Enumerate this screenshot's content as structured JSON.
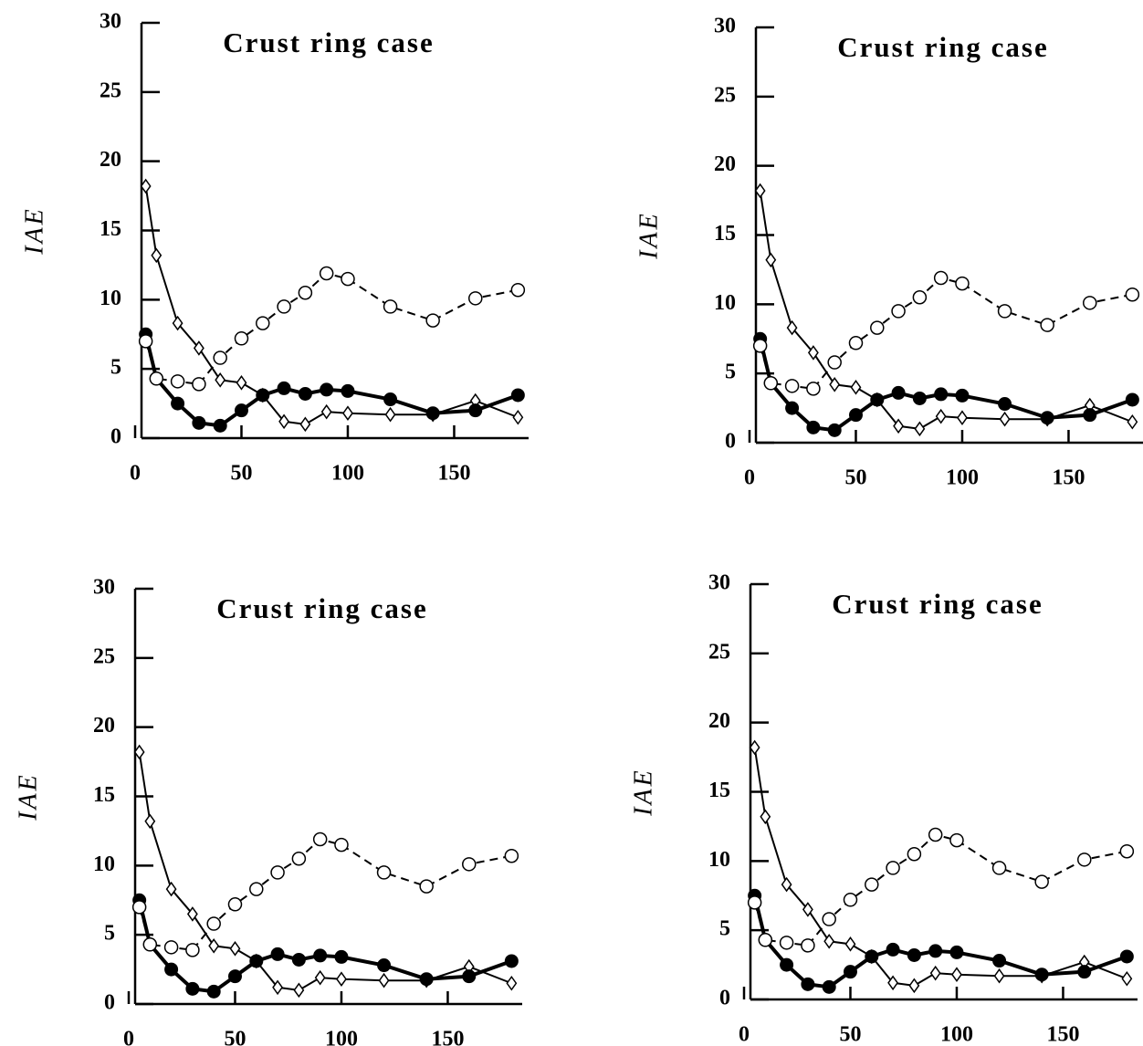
{
  "chart_data": [
    {
      "type": "line",
      "title": "Crust ring case",
      "ylabel": "IAE",
      "x": [
        5,
        10,
        20,
        30,
        40,
        50,
        60,
        70,
        80,
        90,
        100,
        120,
        140,
        160,
        180
      ],
      "xlim": [
        0,
        185
      ],
      "ylim": [
        0,
        30
      ],
      "xticks": [
        0,
        50,
        100,
        150
      ],
      "yticks": [
        0,
        5,
        10,
        15,
        20,
        25,
        30
      ],
      "series": [
        {
          "color": "#000000",
          "marker": "diamond",
          "line_style": "solid",
          "line_width": 2,
          "values": [
            18.2,
            13.2,
            8.3,
            6.5,
            4.2,
            4.0,
            3.1,
            1.2,
            1.0,
            1.9,
            1.8,
            1.7,
            1.7,
            2.7,
            1.5
          ]
        },
        {
          "color": "#000000",
          "marker": "filled-circle",
          "line_style": "solid",
          "line_width": 4,
          "values": [
            7.5,
            4.3,
            2.5,
            1.1,
            0.9,
            2.0,
            3.1,
            3.6,
            3.2,
            3.5,
            3.4,
            2.8,
            1.8,
            2.0,
            3.1
          ]
        },
        {
          "color": "#000000",
          "marker": "open-circle",
          "line_style": "dashed",
          "line_width": 2,
          "values": [
            7.0,
            4.3,
            4.1,
            3.9,
            5.8,
            7.2,
            8.3,
            9.5,
            10.5,
            11.9,
            11.5,
            9.5,
            8.5,
            10.1,
            10.7
          ]
        }
      ]
    },
    {
      "type": "line",
      "title": "Crust ring case",
      "ylabel": "IAE",
      "x": [
        5,
        10,
        20,
        30,
        40,
        50,
        60,
        70,
        80,
        90,
        100,
        120,
        140,
        160,
        180
      ],
      "xlim": [
        0,
        185
      ],
      "ylim": [
        0,
        30
      ],
      "xticks": [
        0,
        50,
        100,
        150
      ],
      "yticks": [
        0,
        5,
        10,
        15,
        20,
        25,
        30
      ],
      "series": [
        {
          "color": "#000000",
          "marker": "diamond",
          "line_style": "solid",
          "line_width": 2,
          "values": [
            18.2,
            13.2,
            8.3,
            6.5,
            4.2,
            4.0,
            3.1,
            1.2,
            1.0,
            1.9,
            1.8,
            1.7,
            1.7,
            2.7,
            1.5
          ]
        },
        {
          "color": "#000000",
          "marker": "filled-circle",
          "line_style": "solid",
          "line_width": 4,
          "values": [
            7.5,
            4.3,
            2.5,
            1.1,
            0.9,
            2.0,
            3.1,
            3.6,
            3.2,
            3.5,
            3.4,
            2.8,
            1.8,
            2.0,
            3.1
          ]
        },
        {
          "color": "#000000",
          "marker": "open-circle",
          "line_style": "dashed",
          "line_width": 2,
          "values": [
            7.0,
            4.3,
            4.1,
            3.9,
            5.8,
            7.2,
            8.3,
            9.5,
            10.5,
            11.9,
            11.5,
            9.5,
            8.5,
            10.1,
            10.7
          ]
        }
      ]
    },
    {
      "type": "line",
      "title": "Crust ring case",
      "ylabel": "IAE",
      "x": [
        5,
        10,
        20,
        30,
        40,
        50,
        60,
        70,
        80,
        90,
        100,
        120,
        140,
        160,
        180
      ],
      "xlim": [
        0,
        185
      ],
      "ylim": [
        0,
        30
      ],
      "xticks": [
        0,
        50,
        100,
        150
      ],
      "yticks": [
        0,
        5,
        10,
        15,
        20,
        25,
        30
      ],
      "series": [
        {
          "color": "#000000",
          "marker": "diamond",
          "line_style": "solid",
          "line_width": 2,
          "values": [
            18.2,
            13.2,
            8.3,
            6.5,
            4.2,
            4.0,
            3.1,
            1.2,
            1.0,
            1.9,
            1.8,
            1.7,
            1.7,
            2.7,
            1.5
          ]
        },
        {
          "color": "#000000",
          "marker": "filled-circle",
          "line_style": "solid",
          "line_width": 4,
          "values": [
            7.5,
            4.3,
            2.5,
            1.1,
            0.9,
            2.0,
            3.1,
            3.6,
            3.2,
            3.5,
            3.4,
            2.8,
            1.8,
            2.0,
            3.1
          ]
        },
        {
          "color": "#000000",
          "marker": "open-circle",
          "line_style": "dashed",
          "line_width": 2,
          "values": [
            7.0,
            4.3,
            4.1,
            3.9,
            5.8,
            7.2,
            8.3,
            9.5,
            10.5,
            11.9,
            11.5,
            9.5,
            8.5,
            10.1,
            10.7
          ]
        }
      ]
    },
    {
      "type": "line",
      "title": "Crust ring case",
      "ylabel": "IAE",
      "x": [
        5,
        10,
        20,
        30,
        40,
        50,
        60,
        70,
        80,
        90,
        100,
        120,
        140,
        160,
        180
      ],
      "xlim": [
        0,
        185
      ],
      "ylim": [
        0,
        30
      ],
      "xticks": [
        0,
        50,
        100,
        150
      ],
      "yticks": [
        0,
        5,
        10,
        15,
        20,
        25,
        30
      ],
      "series": [
        {
          "color": "#000000",
          "marker": "diamond",
          "line_style": "solid",
          "line_width": 2,
          "values": [
            18.2,
            13.2,
            8.3,
            6.5,
            4.2,
            4.0,
            3.1,
            1.2,
            1.0,
            1.9,
            1.8,
            1.7,
            1.7,
            2.7,
            1.5
          ]
        },
        {
          "color": "#000000",
          "marker": "filled-circle",
          "line_style": "solid",
          "line_width": 4,
          "values": [
            7.5,
            4.3,
            2.5,
            1.1,
            0.9,
            2.0,
            3.1,
            3.6,
            3.2,
            3.5,
            3.4,
            2.8,
            1.8,
            2.0,
            3.1
          ]
        },
        {
          "color": "#000000",
          "marker": "open-circle",
          "line_style": "dashed",
          "line_width": 2,
          "values": [
            7.0,
            4.3,
            4.1,
            3.9,
            5.8,
            7.2,
            8.3,
            9.5,
            10.5,
            11.9,
            11.5,
            9.5,
            8.5,
            10.1,
            10.7
          ]
        }
      ]
    }
  ]
}
